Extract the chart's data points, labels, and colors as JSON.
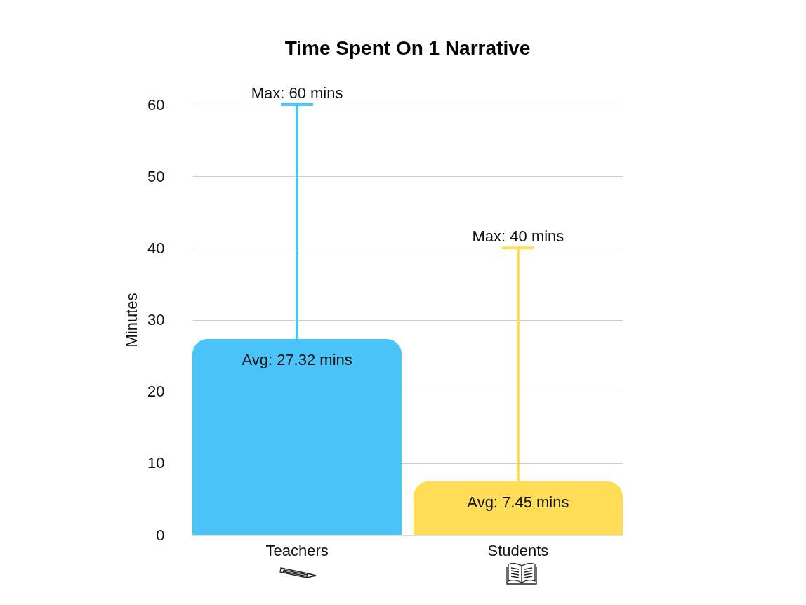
{
  "chart_data": {
    "type": "bar",
    "title": "Time Spent On 1 Narrative",
    "ylabel": "Minutes",
    "categories": [
      "Teachers",
      "Students"
    ],
    "values": [
      27.32,
      7.45
    ],
    "colors": [
      "#4bc4fa",
      "#ffdd57"
    ],
    "errors": [
      [
        27.32,
        60
      ],
      [
        7.45,
        40
      ]
    ],
    "value_labels": [
      "Avg: 27.32 mins",
      "Avg: 7.45 mins"
    ],
    "annotations": [
      {
        "text": "Max: 60 mins",
        "x": "Teachers",
        "y": 60
      },
      {
        "text": "Max: 40 mins",
        "x": "Students",
        "y": 40
      }
    ],
    "ylim": [
      0,
      60
    ],
    "yticks": [
      0,
      10,
      20,
      30,
      40,
      50,
      60
    ],
    "grid": "y"
  }
}
